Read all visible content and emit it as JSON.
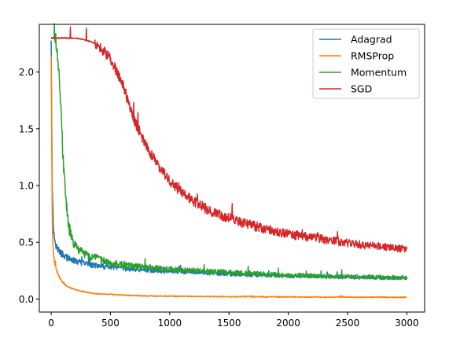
{
  "chart_data": {
    "type": "line",
    "xlim": [
      -100,
      3150
    ],
    "ylim": [
      -0.115,
      2.42
    ],
    "x_ticks": [
      0,
      500,
      1000,
      1500,
      2000,
      2500,
      3000
    ],
    "y_ticks": [
      0.0,
      0.5,
      1.0,
      1.5,
      2.0
    ],
    "x_tick_labels": [
      "0",
      "500",
      "1000",
      "1500",
      "2000",
      "2500",
      "3000"
    ],
    "y_tick_labels": [
      "0.0",
      "0.5",
      "1.0",
      "1.5",
      "2.0"
    ],
    "grid": false,
    "legend_position": "top-right",
    "x_points": [
      0,
      5,
      10,
      20,
      30,
      50,
      75,
      100,
      125,
      150,
      175,
      200,
      250,
      300,
      350,
      400,
      500,
      600,
      700,
      800,
      900,
      1000,
      1100,
      1200,
      1300,
      1400,
      1500,
      1600,
      1700,
      1800,
      1900,
      2000,
      2100,
      2200,
      2300,
      2400,
      2500,
      2600,
      2700,
      2800,
      2900,
      3000
    ],
    "series": [
      {
        "name": "Adagrad",
        "color": "#1f77b4",
        "noise": 0.05,
        "values": [
          2.28,
          1.6,
          0.9,
          0.62,
          0.52,
          0.45,
          0.41,
          0.39,
          0.37,
          0.355,
          0.345,
          0.335,
          0.32,
          0.31,
          0.3,
          0.29,
          0.28,
          0.27,
          0.26,
          0.255,
          0.25,
          0.245,
          0.24,
          0.235,
          0.23,
          0.225,
          0.22,
          0.215,
          0.21,
          0.21,
          0.205,
          0.2,
          0.2,
          0.2,
          0.195,
          0.195,
          0.19,
          0.19,
          0.19,
          0.185,
          0.185,
          0.18
        ]
      },
      {
        "name": "RMSProp",
        "color": "#ff7f0e",
        "noise": 0.03,
        "values": [
          2.15,
          1.4,
          0.6,
          0.4,
          0.32,
          0.24,
          0.18,
          0.14,
          0.12,
          0.105,
          0.095,
          0.085,
          0.07,
          0.06,
          0.05,
          0.045,
          0.04,
          0.035,
          0.03,
          0.028,
          0.026,
          0.025,
          0.024,
          0.023,
          0.022,
          0.021,
          0.02,
          0.02,
          0.02,
          0.019,
          0.019,
          0.018,
          0.018,
          0.018,
          0.017,
          0.017,
          0.017,
          0.016,
          0.016,
          0.016,
          0.015,
          0.015
        ]
      },
      {
        "name": "Momentum",
        "color": "#2ca02c",
        "noise": 0.06,
        "values": [
          2.3,
          2.3,
          2.3,
          2.3,
          2.29,
          2.2,
          1.85,
          1.25,
          0.85,
          0.63,
          0.53,
          0.47,
          0.42,
          0.39,
          0.37,
          0.35,
          0.32,
          0.3,
          0.29,
          0.28,
          0.27,
          0.26,
          0.255,
          0.25,
          0.245,
          0.24,
          0.235,
          0.23,
          0.225,
          0.22,
          0.215,
          0.21,
          0.21,
          0.205,
          0.2,
          0.2,
          0.2,
          0.195,
          0.195,
          0.19,
          0.19,
          0.19
        ]
      },
      {
        "name": "SGD",
        "color": "#d62728",
        "noise": 0.045,
        "values": [
          2.3,
          2.3,
          2.3,
          2.3,
          2.3,
          2.3,
          2.3,
          2.3,
          2.3,
          2.3,
          2.3,
          2.3,
          2.29,
          2.28,
          2.26,
          2.23,
          2.12,
          1.9,
          1.58,
          1.35,
          1.18,
          1.04,
          0.94,
          0.86,
          0.8,
          0.75,
          0.71,
          0.675,
          0.645,
          0.62,
          0.595,
          0.575,
          0.555,
          0.54,
          0.525,
          0.51,
          0.495,
          0.48,
          0.47,
          0.46,
          0.45,
          0.44
        ]
      }
    ]
  }
}
